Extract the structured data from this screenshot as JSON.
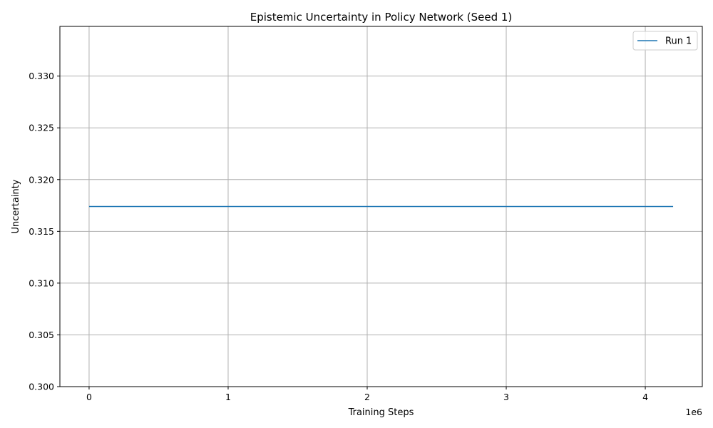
{
  "chart_data": {
    "type": "line",
    "title": "Epistemic Uncertainty in Policy Network (Seed 1)",
    "xlabel": "Training Steps",
    "ylabel": "Uncertainty",
    "x_offset_label": "1e6",
    "xlim": [
      -210000,
      4410000
    ],
    "ylim": [
      0.3,
      0.3348
    ],
    "x_ticks": [
      0,
      1000000,
      2000000,
      3000000,
      4000000
    ],
    "x_tick_labels": [
      "0",
      "1",
      "2",
      "3",
      "4"
    ],
    "y_ticks": [
      0.3,
      0.305,
      0.31,
      0.315,
      0.32,
      0.325,
      0.33
    ],
    "y_tick_labels": [
      "0.300",
      "0.305",
      "0.310",
      "0.315",
      "0.320",
      "0.325",
      "0.330"
    ],
    "grid": true,
    "legend_position": "top-right",
    "series": [
      {
        "name": "Run 1",
        "color": "#1f77b4",
        "x": [
          0,
          4200000
        ],
        "y": [
          0.3174,
          0.3174
        ]
      }
    ]
  }
}
